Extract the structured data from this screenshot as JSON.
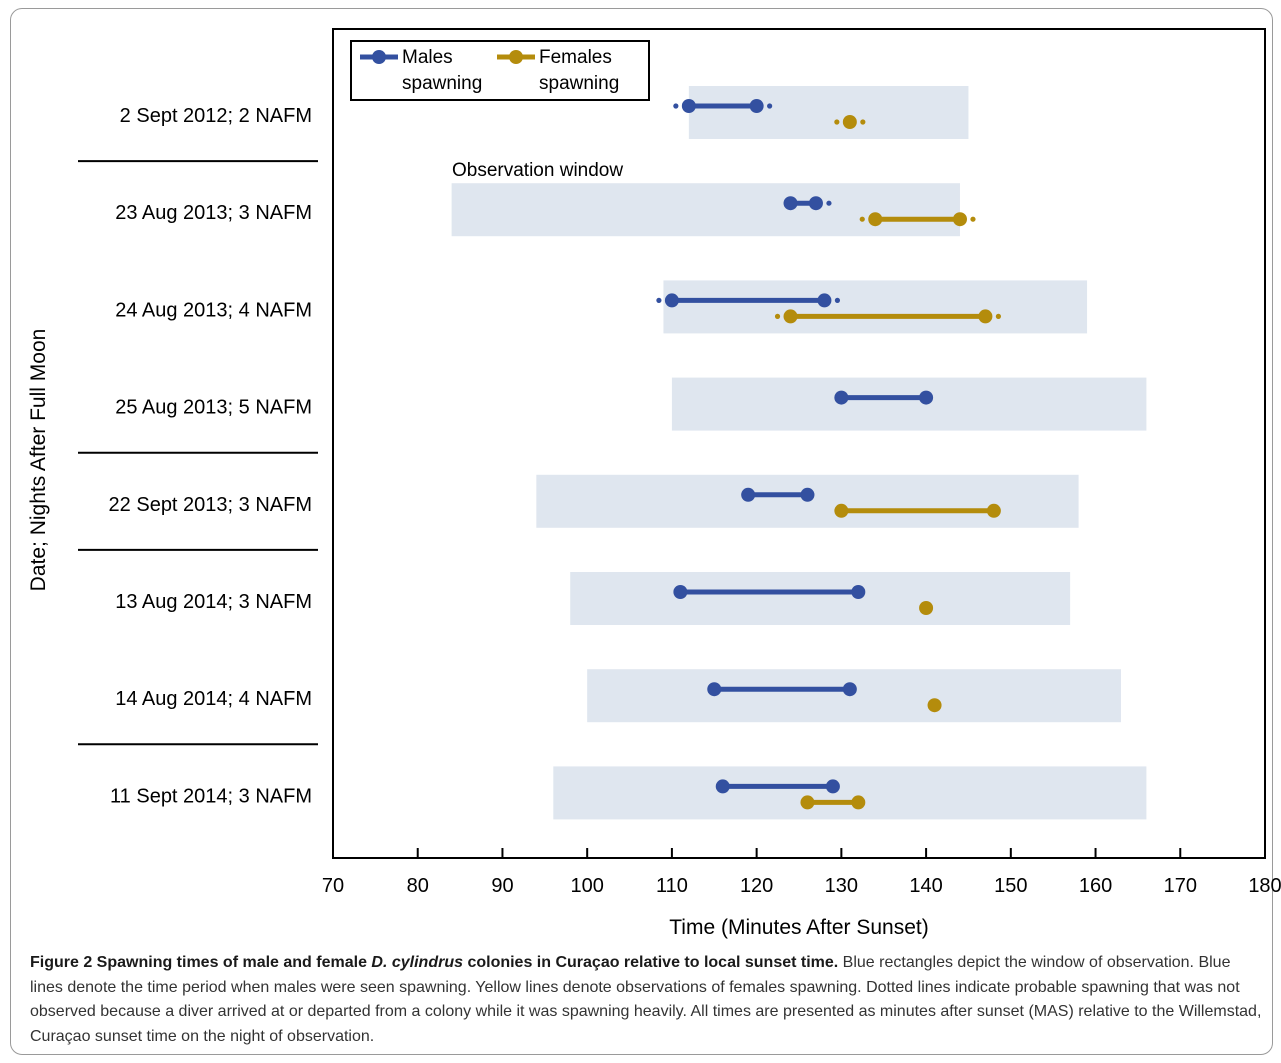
{
  "chart_data": {
    "type": "range-dot",
    "xlabel": "Time (Minutes After Sunset)",
    "ylabel": "Date; Nights After Full Moon",
    "xlim": [
      70,
      180
    ],
    "xticks": [
      70,
      80,
      90,
      100,
      110,
      120,
      130,
      140,
      150,
      160,
      170,
      180
    ],
    "legend": {
      "placement": "top-left",
      "entries": [
        {
          "name": "Males",
          "name2": "spawning",
          "color": "#3350a0"
        },
        {
          "name": "Females",
          "name2": "spawning",
          "color": "#b48c0c"
        }
      ]
    },
    "annotation": "Observation window",
    "window_color": "#dfe6ef",
    "male_color": "#3350a0",
    "female_color": "#b48c0c",
    "rows": [
      {
        "label": "2 Sept 2012; 2 NAFM",
        "window": [
          112,
          145
        ],
        "males": [
          112,
          120
        ],
        "females": [
          131,
          131
        ],
        "males_dotted": true,
        "females_dotted": true
      },
      {
        "label": "23 Aug 2013; 3 NAFM",
        "window": [
          84,
          144
        ],
        "males": [
          124,
          127
        ],
        "females": [
          134,
          144
        ],
        "males_dotted_right": true,
        "females_dotted": true
      },
      {
        "label": "24 Aug 2013; 4 NAFM",
        "window": [
          109,
          159
        ],
        "males": [
          110,
          128
        ],
        "females": [
          124,
          147
        ],
        "males_dotted": true,
        "females_dotted": true
      },
      {
        "label": "25 Aug 2013; 5 NAFM",
        "window": [
          110,
          166
        ],
        "males": [
          130,
          140
        ],
        "females": null
      },
      {
        "label": "22 Sept 2013; 3 NAFM",
        "window": [
          94,
          158
        ],
        "males": [
          119,
          126
        ],
        "females": [
          130,
          148
        ]
      },
      {
        "label": "13 Aug 2014; 3 NAFM",
        "window": [
          98,
          157
        ],
        "males": [
          111,
          132
        ],
        "females": [
          140,
          140
        ]
      },
      {
        "label": "14 Aug 2014; 4 NAFM",
        "window": [
          100,
          163
        ],
        "males": [
          115,
          131
        ],
        "females": [
          141,
          141
        ]
      },
      {
        "label": "11 Sept 2014; 3 NAFM",
        "window": [
          96,
          166
        ],
        "males": [
          116,
          129
        ],
        "females": [
          126,
          132
        ]
      }
    ]
  },
  "caption": {
    "title_prefix": "Figure 2 Spawning times of male and female ",
    "title_species": "D. cylindrus",
    "title_suffix": " colonies in Curaçao relative to local sunset time.",
    "body": " Blue rectangles depict the window of observation. Blue lines denote the time period when males were seen spawning. Yellow lines denote observations of females spawning. Dotted lines indicate probable spawning that was not observed because a diver arrived at or departed from a colony while it was spawning heavily. All times are presented as minutes after sunset (MAS) relative to the Willemstad, Curaçao sunset time on the night of observation."
  }
}
